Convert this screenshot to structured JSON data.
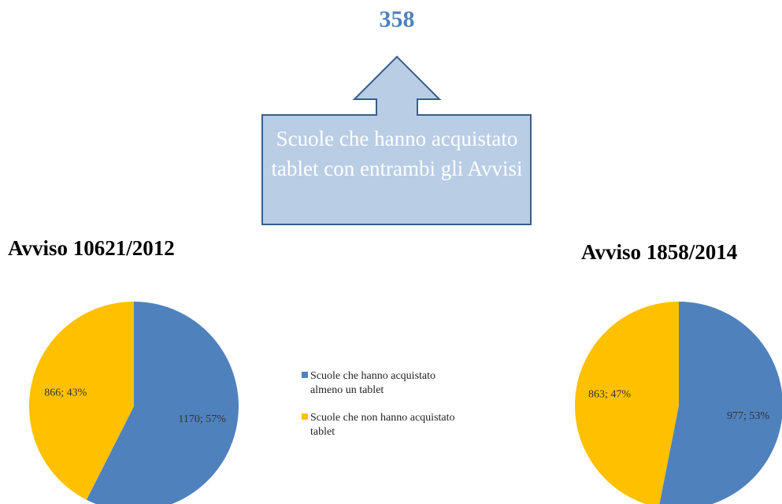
{
  "callout": {
    "value": 358,
    "text": "Scuole che hanno acquistato tablet con entrambi gli Avvisi"
  },
  "legend": {
    "categories": [
      "Scuole che hanno acquistato almeno un tablet",
      "Scuole che non hanno acquistato  tablet"
    ],
    "colors": [
      "#4f81bd",
      "#ffc000"
    ]
  },
  "chart_data": [
    {
      "type": "pie",
      "title": "Avviso 10621/2012",
      "values": [
        1170,
        866
      ],
      "value_labels": [
        "1170; 57%",
        "866; 43%"
      ]
    },
    {
      "type": "pie",
      "title": "Avviso 1858/2014",
      "values": [
        977,
        863
      ],
      "value_labels": [
        "977; 53%",
        "863; 47%"
      ]
    }
  ]
}
